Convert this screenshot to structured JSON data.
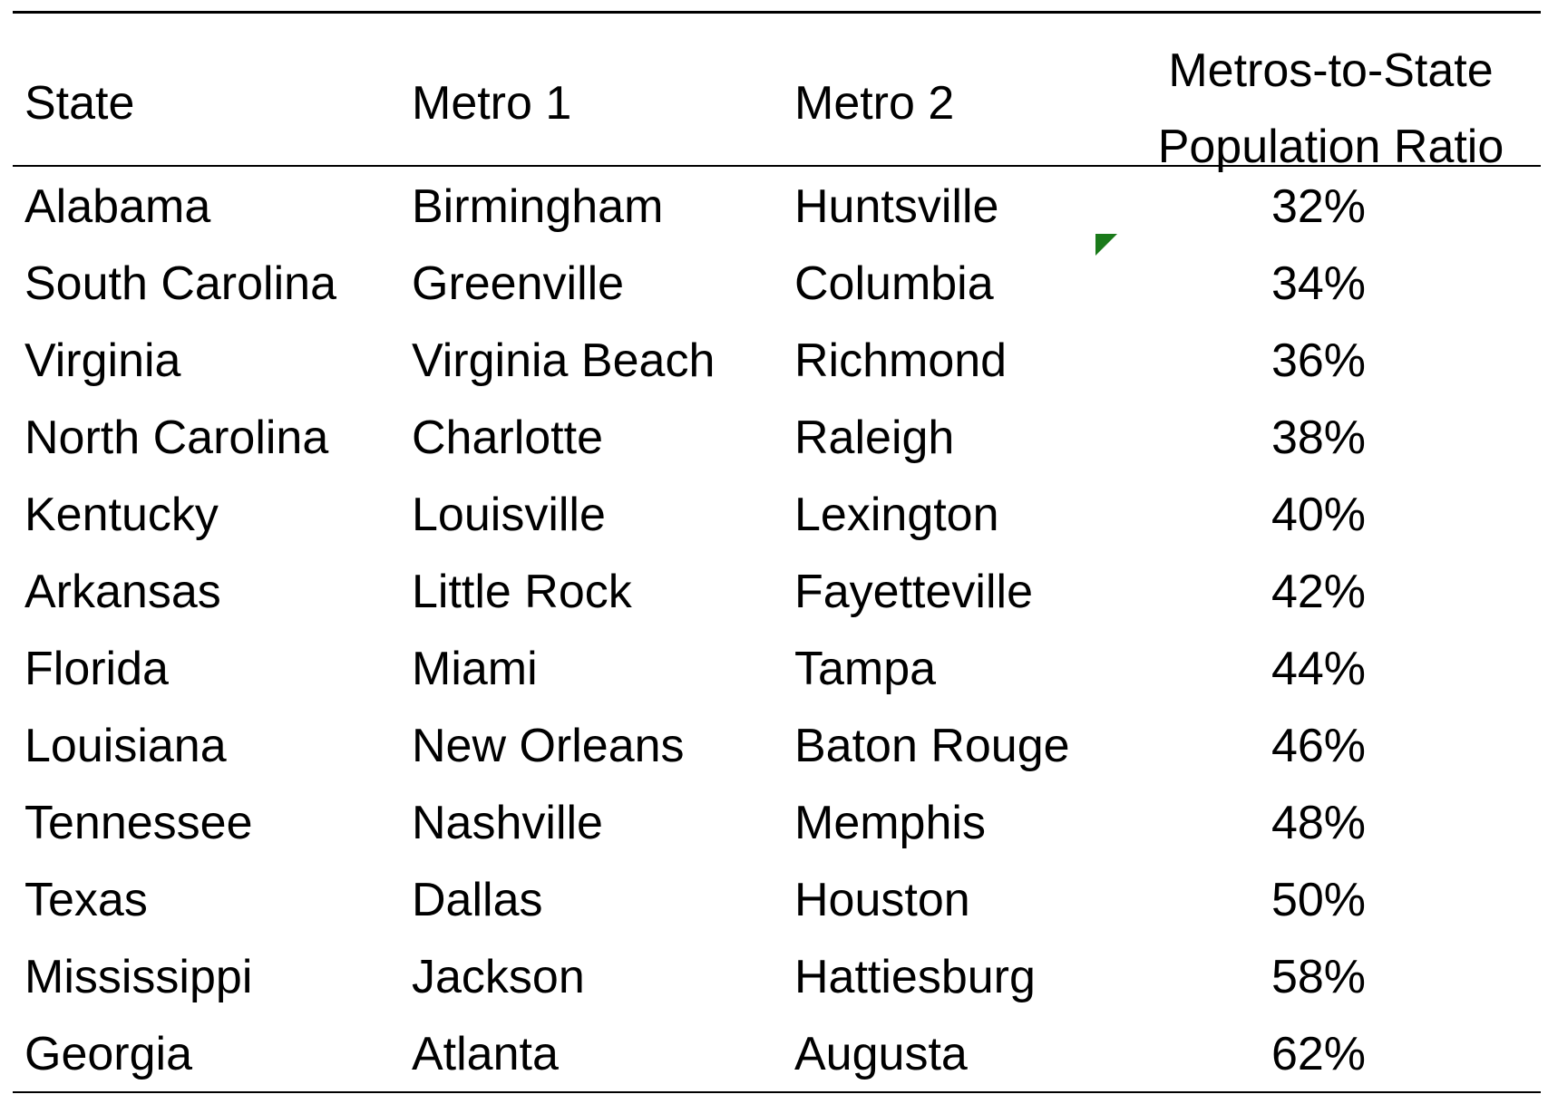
{
  "table": {
    "headers": {
      "state": "State",
      "metro1": "Metro 1",
      "metro2": "Metro 2",
      "ratio_line1": "Metros-to-State",
      "ratio_line2": "Population Ratio"
    },
    "rows": [
      {
        "state": "Alabama",
        "metro1": "Birmingham",
        "metro2": "Huntsville",
        "ratio": "32%"
      },
      {
        "state": "South Carolina",
        "metro1": "Greenville",
        "metro2": "Columbia",
        "ratio": "34%"
      },
      {
        "state": "Virginia",
        "metro1": "Virginia Beach",
        "metro2": "Richmond",
        "ratio": "36%"
      },
      {
        "state": "North Carolina",
        "metro1": "Charlotte",
        "metro2": "Raleigh",
        "ratio": "38%"
      },
      {
        "state": "Kentucky",
        "metro1": "Louisville",
        "metro2": "Lexington",
        "ratio": "40%"
      },
      {
        "state": "Arkansas",
        "metro1": "Little Rock",
        "metro2": "Fayetteville",
        "ratio": "42%"
      },
      {
        "state": "Florida",
        "metro1": "Miami",
        "metro2": "Tampa",
        "ratio": "44%"
      },
      {
        "state": "Louisiana",
        "metro1": "New Orleans",
        "metro2": "Baton Rouge",
        "ratio": "46%"
      },
      {
        "state": "Tennessee",
        "metro1": "Nashville",
        "metro2": "Memphis",
        "ratio": "48%"
      },
      {
        "state": "Texas",
        "metro1": "Dallas",
        "metro2": "Houston",
        "ratio": "50%"
      },
      {
        "state": "Mississippi",
        "metro1": "Jackson",
        "metro2": "Hattiesburg",
        "ratio": "58%"
      },
      {
        "state": "Georgia",
        "metro1": "Atlanta",
        "metro2": "Augusta",
        "ratio": "62%"
      }
    ]
  },
  "colors": {
    "text": "#000000",
    "background": "#ffffff",
    "cell_note_marker": "#1a7a1a"
  },
  "icons": {
    "cell_marker": "comment-indicator-triangle"
  }
}
